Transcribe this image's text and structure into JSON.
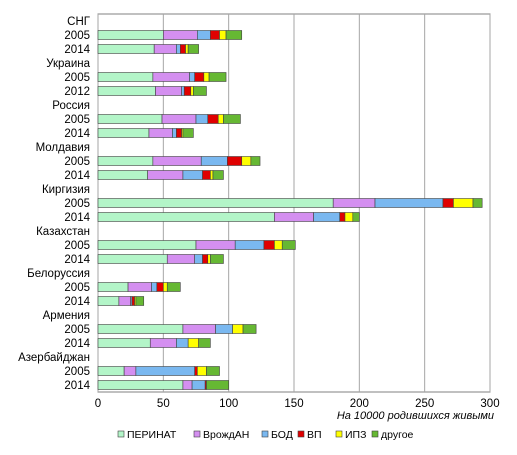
{
  "chart_data": {
    "type": "bar",
    "orientation": "horizontal",
    "stacked": true,
    "xlabel": "На 10000 родившихся живыми",
    "xlim": [
      0,
      300
    ],
    "xticks": [
      0,
      50,
      100,
      150,
      200,
      250,
      300
    ],
    "grid": true,
    "legend_position": "bottom",
    "categories": [
      "СНГ",
      "2005",
      "2014",
      "Украина",
      "2005",
      "2012",
      "Россия",
      "2005",
      "2014",
      "Молдавия",
      "2005",
      "2014",
      "Киргизия",
      "2005",
      "2014",
      "Казахстан",
      "2005",
      "2014",
      "Белоруссия",
      "2005",
      "2014",
      "Армения",
      "2005",
      "2014",
      "Азербайджан",
      "2005",
      "2014"
    ],
    "series": [
      {
        "name": "ПЕРИНАТ",
        "color": "#b3f5c8",
        "values": [
          null,
          50,
          43,
          null,
          42,
          44,
          null,
          49,
          39,
          null,
          42,
          38,
          null,
          180,
          135,
          null,
          75,
          53,
          null,
          23,
          16,
          null,
          65,
          40,
          null,
          20,
          65
        ]
      },
      {
        "name": "ВрождАН",
        "color": "#d48ff0",
        "values": [
          null,
          26,
          17,
          null,
          28,
          20,
          null,
          26,
          18,
          null,
          37,
          27,
          null,
          32,
          30,
          null,
          30,
          21,
          null,
          18,
          9,
          null,
          25,
          20,
          null,
          9,
          7
        ]
      },
      {
        "name": "БОД",
        "color": "#7ab8f0",
        "values": [
          null,
          10,
          3,
          null,
          4,
          2,
          null,
          9,
          3,
          null,
          20,
          15,
          null,
          52,
          20,
          null,
          22,
          6,
          null,
          4,
          1,
          null,
          13,
          9,
          null,
          45,
          10
        ]
      },
      {
        "name": "ВП",
        "color": "#e00000",
        "values": [
          null,
          7,
          4,
          null,
          7,
          5,
          null,
          8,
          4,
          null,
          11,
          6,
          null,
          8,
          4,
          null,
          8,
          4,
          null,
          5,
          2,
          null,
          0,
          0,
          null,
          2,
          1
        ]
      },
      {
        "name": "ИПЗ",
        "color": "#ffff00",
        "values": [
          null,
          5,
          2,
          null,
          4,
          2,
          null,
          4,
          1,
          null,
          7,
          2,
          null,
          15,
          6,
          null,
          6,
          2,
          null,
          3,
          1,
          null,
          8,
          8,
          null,
          7,
          0
        ]
      },
      {
        "name": "другое",
        "color": "#66b833",
        "values": [
          null,
          12,
          8,
          null,
          13,
          10,
          null,
          13,
          8,
          null,
          7,
          8,
          null,
          7,
          5,
          null,
          10,
          10,
          null,
          10,
          6,
          null,
          10,
          9,
          null,
          10,
          17
        ]
      }
    ]
  }
}
